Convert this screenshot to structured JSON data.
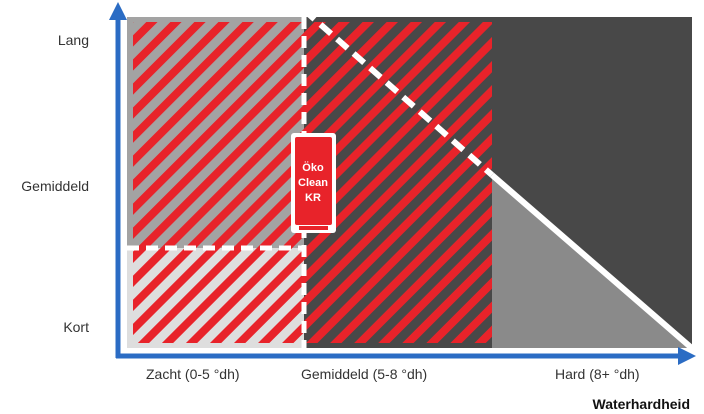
{
  "y_axis": {
    "levels": [
      "Lang",
      "Gemiddeld",
      "Kort"
    ]
  },
  "x_axis": {
    "categories": [
      "Zacht (0-5 °dh)",
      "Gemiddeld (5-8 °dh)",
      "Hard (8+ °dh)"
    ],
    "title": "Waterhardheid"
  },
  "product": {
    "lines": [
      "Öko",
      "Clean",
      "KR"
    ]
  },
  "colors": {
    "axis": "#2b6cc4",
    "hatch": "#e8232a",
    "zone_dark": "#484848",
    "zone_mid": "#8a8a8a",
    "zone_light_gray": "#a3a3a3",
    "zone_pale": "#dedede",
    "divider": "#ffffff"
  }
}
